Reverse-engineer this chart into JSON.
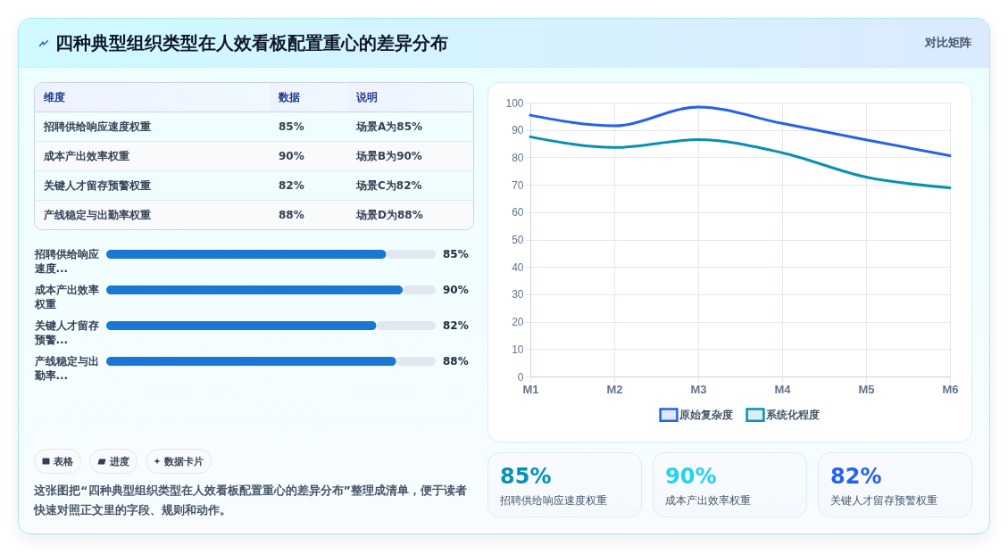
{
  "chart_data": [
    {
      "type": "other",
      "title": "四种典型组织类型在人效看板配置重心的差异分布",
      "subtitle": "对比矩阵"
    },
    {
      "type": "other",
      "categories": [
        "招聘供给响应速度权重",
        "成本产出效率权重",
        "关键人才留存预警权重",
        "产线稳定与出勤率权重"
      ],
      "value_labels": [
        "85%",
        "90%",
        "82%",
        "88%"
      ],
      "annotations": [
        "维度",
        "数据",
        "说明",
        "场景A为85%",
        "场景B为90%",
        "场景C为82%",
        "场景D为88%"
      ]
    },
    {
      "type": "bar",
      "orientation": "horizontal",
      "categories": [
        "招聘供给响应速度...",
        "成本产出效率权重",
        "关键人才留存预警...",
        "产线稳定与出勤率..."
      ],
      "values": [
        85,
        90,
        82,
        88
      ],
      "value_labels": [
        "85%",
        "90%",
        "82%",
        "88%"
      ],
      "color": "#1a78d4",
      "xlim": [
        0,
        100
      ],
      "tick_labels": "y",
      "annotations": [
        "表格",
        "进度",
        "数据卡片",
        "这张图把“四种典型组织类型在人效看板配置重心的差异分布”整理成清单，便于读者快速对照正文里的字段、规则和动作。"
      ]
    },
    {
      "type": "line",
      "categories": [
        "M1",
        "M2",
        "M3",
        "M4",
        "M5",
        "M6"
      ],
      "series": [
        {
          "name": "原始复杂度",
          "color": "#2563eb",
          "values": [
            95.4,
            91.5,
            98.4,
            92.4,
            86.4,
            80.6
          ]
        },
        {
          "name": "系统化程度",
          "color": "#0891b2",
          "values": [
            87.5,
            83.6,
            86.5,
            81.7,
            72.8,
            68.9
          ]
        }
      ],
      "ylim": [
        0,
        100
      ],
      "yticks": [
        0,
        10,
        20,
        30,
        40,
        50,
        60,
        70,
        80,
        90,
        100
      ],
      "grid": true,
      "legend": "bottom"
    },
    {
      "type": "other",
      "categories": [
        "招聘供给响应速度权重",
        "成本产出效率权重",
        "关键人才留存预警权重"
      ],
      "value_labels": [
        "85%",
        "90%",
        "82%"
      ],
      "colors": [
        "#0891b2",
        "#22d3ee",
        "#2563eb"
      ]
    }
  ]
}
